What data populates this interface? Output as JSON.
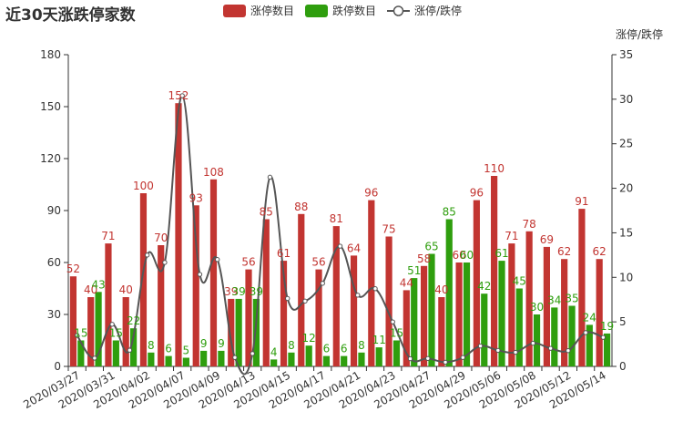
{
  "chart_data": {
    "type": "bar",
    "title": "近30天涨跌停家数",
    "xlabel": "",
    "ylabel": "",
    "y2label": "涨停/跌停",
    "ylim": [
      0,
      180
    ],
    "yticks": [
      0,
      30,
      60,
      90,
      120,
      150,
      180
    ],
    "y2lim": [
      0,
      35
    ],
    "y2ticks": [
      0,
      5,
      10,
      15,
      20,
      25,
      30,
      35
    ],
    "grid": false,
    "legend_position": "top-center",
    "categories": [
      "2020/03/27",
      "2020/03/30",
      "2020/03/31",
      "2020/04/01",
      "2020/04/02",
      "2020/04/03",
      "2020/04/07",
      "2020/04/08",
      "2020/04/09",
      "2020/04/10",
      "2020/04/13",
      "2020/04/14",
      "2020/04/15",
      "2020/04/16",
      "2020/04/17",
      "2020/04/20",
      "2020/04/21",
      "2020/04/22",
      "2020/04/23",
      "2020/04/24",
      "2020/04/27",
      "2020/04/28",
      "2020/04/29",
      "2020/04/30",
      "2020/05/06",
      "2020/05/07",
      "2020/05/08",
      "2020/05/11",
      "2020/05/12",
      "2020/05/13",
      "2020/05/14"
    ],
    "visible_tick_labels": [
      "2020/03/27",
      "2020/03/31",
      "2020/04/02",
      "2020/04/07",
      "2020/04/09",
      "2020/04/13",
      "2020/04/15",
      "2020/04/17",
      "2020/04/21",
      "2020/04/23",
      "2020/04/27",
      "2020/04/29",
      "2020/05/06",
      "2020/05/08",
      "2020/05/12",
      "2020/05/14"
    ],
    "series": [
      {
        "name": "涨停数目",
        "type": "bar",
        "axis": "left",
        "color": "#c23531",
        "values": [
          52,
          40,
          71,
          40,
          100,
          70,
          152,
          93,
          108,
          39,
          56,
          85,
          61,
          88,
          56,
          81,
          64,
          96,
          75,
          44,
          58,
          40,
          60,
          96,
          110,
          71,
          78,
          69,
          62,
          91,
          62
        ]
      },
      {
        "name": "跌停数目",
        "type": "bar",
        "axis": "left",
        "color": "#2f9e0e",
        "values": [
          15,
          43,
          15,
          22,
          8,
          6,
          5,
          9,
          9,
          39,
          39,
          4,
          8,
          12,
          6,
          6,
          8,
          11,
          15,
          51,
          65,
          85,
          60,
          42,
          61,
          45,
          30,
          34,
          35,
          24,
          19
        ]
      },
      {
        "name": "涨停/跌停",
        "type": "line",
        "axis": "right",
        "smooth": true,
        "color": "#555555",
        "values": [
          3.47,
          0.93,
          4.73,
          1.82,
          12.5,
          11.67,
          30.4,
          10.33,
          12.0,
          1.0,
          1.44,
          21.25,
          7.63,
          7.33,
          9.33,
          13.5,
          8.0,
          8.73,
          5.0,
          0.86,
          0.89,
          0.47,
          1.0,
          2.29,
          1.8,
          1.58,
          2.6,
          2.03,
          1.77,
          3.79,
          3.26
        ]
      }
    ]
  }
}
